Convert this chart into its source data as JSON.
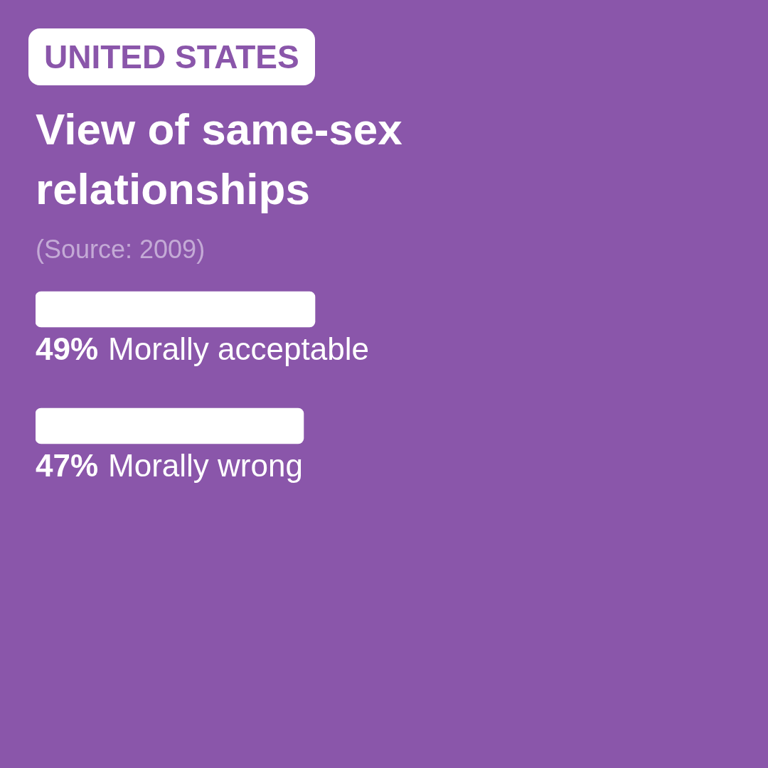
{
  "chart_data": {
    "type": "bar",
    "orientation": "horizontal",
    "subtitle": "UNITED STATES",
    "title": "View of same-sex relationships",
    "annotations": [
      "(Source: 2009)"
    ],
    "categories": [
      "Morally acceptable",
      "Morally wrong"
    ],
    "values": [
      49,
      47
    ],
    "value_labels": [
      "49%",
      "47%"
    ],
    "color": "#ffffff",
    "legend": false
  }
}
